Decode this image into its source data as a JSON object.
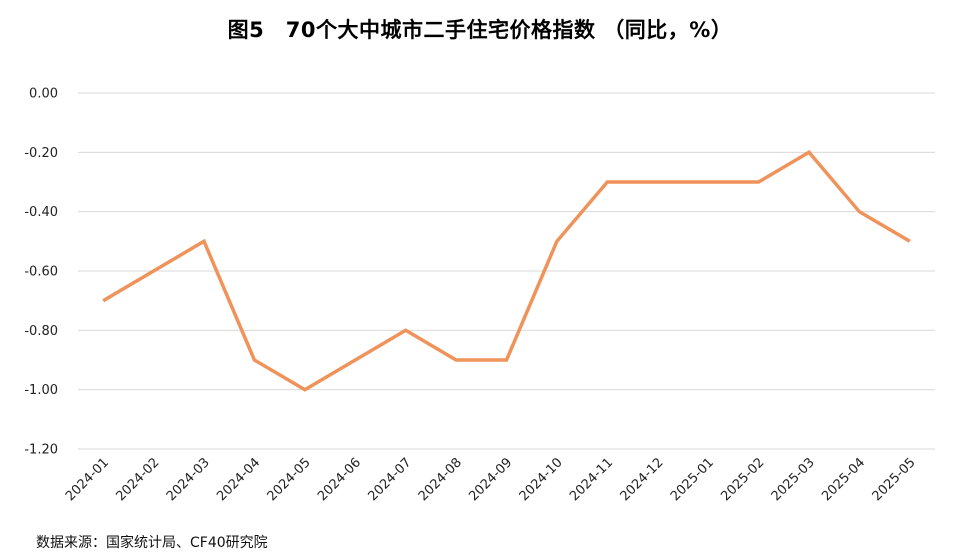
{
  "title": "图5　70个大中城市二手住宅价格指数 （同比，%）",
  "source": "数据来源：国家统计局、CF40研究院",
  "chart_data": {
    "type": "line",
    "title": "图5　70个大中城市二手住宅价格指数 （同比，%）",
    "xlabel": "",
    "ylabel": "",
    "categories": [
      "2024-01",
      "2024-02",
      "2024-03",
      "2024-04",
      "2024-05",
      "2024-06",
      "2024-07",
      "2024-08",
      "2024-09",
      "2024-10",
      "2024-11",
      "2024-12",
      "2025-01",
      "2025-02",
      "2025-03",
      "2025-04",
      "2025-05"
    ],
    "series": [
      {
        "values": [
          -0.7,
          -0.6,
          -0.5,
          -0.9,
          -1.0,
          -0.9,
          -0.8,
          -0.9,
          -0.9,
          -0.5,
          -0.3,
          -0.3,
          -0.3,
          -0.3,
          -0.2,
          -0.4,
          -0.5
        ],
        "color": "#f0935a"
      }
    ],
    "ylim": [
      -1.2,
      0.0
    ],
    "yticks": [
      "0.00",
      "-0.20",
      "-0.40",
      "-0.60",
      "-0.80",
      "-1.00",
      "-1.20"
    ],
    "grid": true,
    "legend": "none"
  }
}
